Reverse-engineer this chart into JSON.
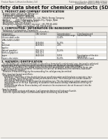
{
  "bg_color": "#f0ede8",
  "header_left": "Product Name: Lithium Ion Battery Cell",
  "header_right_line1": "Publication Number: NBSG53ABA-D09109",
  "header_right_line2": "Established / Revision: Dec.7.2009",
  "title": "Safety data sheet for chemical products (SDS)",
  "section1_title": "1. PRODUCT AND COMPANY IDENTIFICATION",
  "section1_items": [
    "· Product name: Lithium Ion Battery Cell",
    "· Product code: Cylindrical type cell",
    "   (UR18650J, UR18650U, UR B650A",
    "· Company name:   Sanyo Electric Co., Ltd., Mobile Energy Company",
    "· Address:        2001 Kamitoyama, Sumoto-City, Hyogo, Japan",
    "· Telephone number:   +81-799-26-4111",
    "· Fax number: +81-799-26-4125",
    "· Emergency telephone number (daytime): +81-799-26-2662",
    "                         (Night and holiday): +81-799-26-4101"
  ],
  "section2_title": "2. COMPOSITION / INFORMATION ON INGREDIENTS",
  "section2_sub1": "· Substance or preparation: Preparation",
  "section2_sub2": "· Information about the chemical nature of product:",
  "col_headers_row1": [
    "Component/Chemical name",
    "CAS number",
    "Concentration /\nConcentration range",
    "Classification and\nhazard labeling"
  ],
  "table_rows": [
    [
      "Lithium cobalt oxide",
      "-",
      "30-40%",
      ""
    ],
    [
      "(LiMn-CoO2(LiCoO2))",
      "",
      "",
      ""
    ],
    [
      "Iron",
      "7439-89-6",
      "15-25%",
      ""
    ],
    [
      "Aluminum",
      "7429-90-5",
      "2-8%",
      ""
    ],
    [
      "Graphite",
      "",
      "",
      ""
    ],
    [
      "(Natural graphite)",
      "7782-42-5",
      "10-25%",
      ""
    ],
    [
      "(Artificial graphite)",
      "7782-42-5",
      "",
      ""
    ],
    [
      "Copper",
      "7440-50-8",
      "5-15%",
      "Sensitization of the skin\ngroup No.2"
    ],
    [
      "Organic electrolyte",
      "-",
      "10-20%",
      "Inflammable liquid"
    ]
  ],
  "section3_title": "3. HAZARDS IDENTIFICATION",
  "section3_lines": [
    "   For the battery cell, chemical materials are stored in a hermetically sealed metal case, designed to withstand",
    "temperatures during normal-use-conditions during normal use. As a result, during normal-use, there is no",
    "physical danger of ignition or explosion and thus no danger of hazardous materials leakage.",
    "   However, if exposed to a fire, added mechanical shocks, decomposed, under electromotive forces, gas",
    "or gas mixture cannot be operated. The battery cell case will be breached at the extremes, hazardous",
    "materials may be released.",
    "   Moreover, if heated strongly by the surrounding fire, solid gas may be emitted.",
    "",
    "· Most important hazard and effects:",
    "   Human health effects:",
    "      Inhalation: The release of the electrolyte has an anesthesia action and stimulates a respiratory tract.",
    "      Skin contact: The release of the electrolyte stimulates a skin. The electrolyte skin contact causes a",
    "      sore and stimulation on the skin.",
    "      Eye contact: The release of the electrolyte stimulates eyes. The electrolyte eye contact causes a sore",
    "      and stimulation on the eye. Especially, a substance that causes a strong inflammation of the eye is",
    "      contained.",
    "      Environmental effects: Since a battery cell remains in the environment, do not throw out it into the",
    "      environment.",
    "",
    "· Specific hazards:",
    "   If the electrolyte contacts with water, it will generate detrimental hydrogen fluoride.",
    "   Since the liquid electrolyte is inflammable liquid, do not bring close to fire."
  ]
}
